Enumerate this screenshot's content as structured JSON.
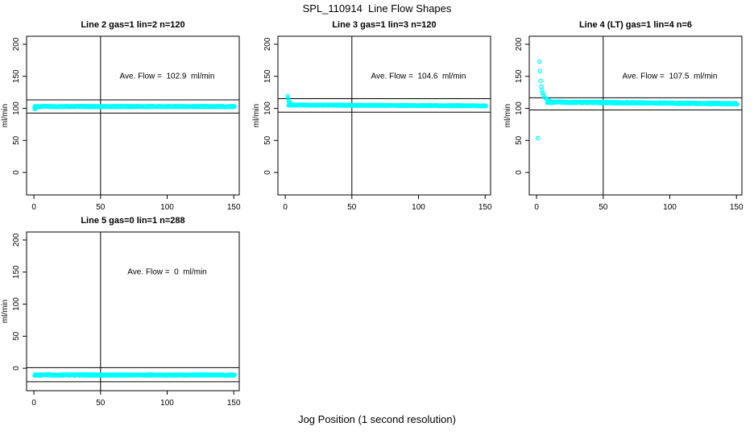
{
  "page": {
    "title": "SPL_110914  Line Flow Shapes",
    "xlabel": "Jog Position (1 second resolution)",
    "background": "#FFFFFF",
    "point_color": "#00FFFF",
    "axis_color": "#000000"
  },
  "chart_data": [
    {
      "type": "scatter",
      "panel": "top-left",
      "title": "Line 2 gas=1 lin=2 n=120",
      "annotation": "Ave. Flow =  102.9  ml/min",
      "ave_flow_ml_min": 102.9,
      "n": 120,
      "ylabel": "ml/min",
      "xticks": [
        0,
        50,
        100,
        150
      ],
      "yticks": [
        0,
        50,
        100,
        150,
        200
      ],
      "xlim": [
        -5.5,
        154.1
      ],
      "ylim": [
        -35,
        212.5
      ],
      "grid": false,
      "vline_x": 50,
      "hlines": [
        113.2,
        92.6
      ],
      "annotation_pos": [
        100,
        150
      ],
      "head_points": [
        [
          0.6,
          99
        ],
        [
          1,
          100
        ],
        [
          1.5,
          100.8
        ],
        [
          2,
          101.4
        ],
        [
          3,
          102
        ],
        [
          4,
          102.4
        ]
      ],
      "band": {
        "x_start": 0.5,
        "x_end": 150.5,
        "y_start": 102.9,
        "y_end": 102.9,
        "amp": 1.6
      }
    },
    {
      "type": "scatter",
      "panel": "top-middle",
      "title": "Line 3 gas=1 lin=3 n=120",
      "annotation": "Ave. Flow =  104.6  ml/min",
      "ave_flow_ml_min": 104.6,
      "n": 120,
      "ylabel": "ml/min",
      "xticks": [
        0,
        50,
        100,
        150
      ],
      "yticks": [
        0,
        50,
        100,
        150,
        200
      ],
      "xlim": [
        -5.5,
        154.1
      ],
      "ylim": [
        -35,
        212.5
      ],
      "grid": false,
      "vline_x": 50,
      "hlines": [
        115.1,
        94.1
      ],
      "annotation_pos": [
        100,
        150
      ],
      "head_points": [
        [
          1.8,
          119
        ],
        [
          2.2,
          116
        ],
        [
          2.6,
          112
        ],
        [
          3,
          109.5
        ],
        [
          3.5,
          108
        ],
        [
          4,
          107
        ],
        [
          5,
          106.3
        ],
        [
          6,
          105.8
        ],
        [
          7,
          105.5
        ],
        [
          8,
          105.2
        ]
      ],
      "band": {
        "x_start": 2.5,
        "x_end": 150.5,
        "y_start": 105.3,
        "y_end": 104.0,
        "amp": 1.4
      }
    },
    {
      "type": "scatter",
      "panel": "top-right",
      "title": "Line 4 (LT) gas=1 lin=4 n=6",
      "annotation": "Ave. Flow =  107.5  ml/min",
      "ave_flow_ml_min": 107.5,
      "n": 6,
      "ylabel": "ml/min",
      "xticks": [
        0,
        50,
        100,
        150
      ],
      "yticks": [
        0,
        50,
        100,
        150,
        200
      ],
      "xlim": [
        -5.5,
        154.1
      ],
      "ylim": [
        -35,
        212.5
      ],
      "grid": false,
      "vline_x": 50,
      "hlines": [
        116.5,
        97.5
      ],
      "annotation_pos": [
        100,
        150
      ],
      "head_points": [
        [
          1,
          53.5
        ],
        [
          2,
          173
        ],
        [
          2.5,
          158
        ],
        [
          3,
          143
        ],
        [
          3.5,
          134
        ],
        [
          4,
          128
        ],
        [
          4.5,
          124
        ],
        [
          5,
          121
        ],
        [
          6,
          117.5
        ],
        [
          7,
          115.3
        ],
        [
          8,
          113.6
        ],
        [
          9,
          112.4
        ],
        [
          10,
          111.5
        ],
        [
          11,
          110.8
        ],
        [
          12,
          110.3
        ],
        [
          13,
          109.9
        ],
        [
          14,
          109.6
        ],
        [
          15,
          109.3
        ]
      ],
      "band": {
        "x_start": 8,
        "x_end": 150.5,
        "y_start": 109.8,
        "y_end": 107.3,
        "amp": 2.2
      }
    },
    {
      "type": "scatter",
      "panel": "bottom-left",
      "title": "Line 5 gas=0 lin=1 n=288",
      "annotation": "Ave. Flow =  0  ml/min",
      "ave_flow_ml_min": 0,
      "n": 288,
      "ylabel": "ml/min",
      "xticks": [
        0,
        50,
        100,
        150
      ],
      "yticks": [
        0,
        50,
        100,
        150,
        200
      ],
      "xlim": [
        -5.5,
        154.1
      ],
      "ylim": [
        -35,
        212.5
      ],
      "grid": false,
      "vline_x": 50,
      "hlines": [
        1,
        -21
      ],
      "annotation_pos": [
        100,
        150
      ],
      "head_points": [],
      "band": {
        "x_start": 0.5,
        "x_end": 150.5,
        "y_start": -10.5,
        "y_end": -10.5,
        "amp": 1.8
      }
    }
  ]
}
